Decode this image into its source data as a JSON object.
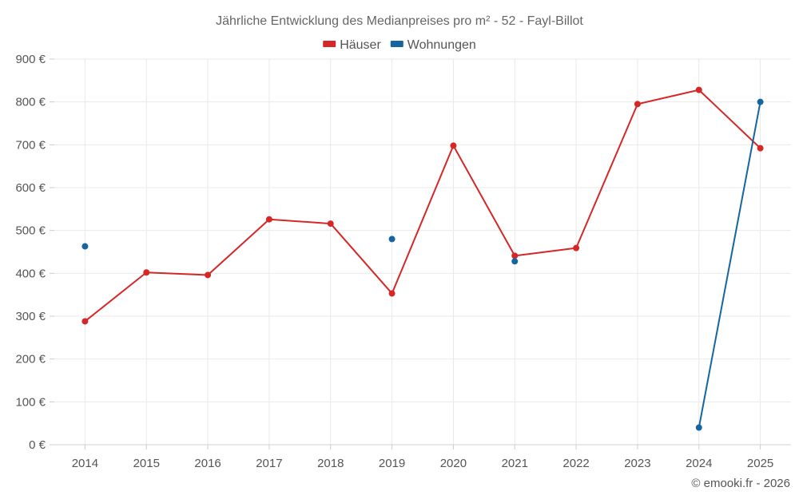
{
  "chart_data": {
    "type": "line",
    "title": "Jährliche Entwicklung des Medianpreises pro m² - 52 - Fayl-Billot",
    "categories": [
      "2014",
      "2015",
      "2016",
      "2017",
      "2018",
      "2019",
      "2020",
      "2021",
      "2022",
      "2023",
      "2024",
      "2025"
    ],
    "series": [
      {
        "name": "Häuser",
        "color": "#d62728",
        "values": [
          288,
          402,
          396,
          526,
          516,
          353,
          698,
          441,
          459,
          795,
          828,
          692
        ]
      },
      {
        "name": "Wohnungen",
        "color": "#1565a0",
        "values": [
          463,
          null,
          null,
          null,
          null,
          480,
          null,
          428,
          null,
          null,
          40,
          800
        ]
      }
    ],
    "ylim": [
      0,
      900
    ],
    "yticks": [
      0,
      100,
      200,
      300,
      400,
      500,
      600,
      700,
      800,
      900
    ],
    "ytick_labels": [
      "0 €",
      "100 €",
      "200 €",
      "300 €",
      "400 €",
      "500 €",
      "600 €",
      "700 €",
      "800 €",
      "900 €"
    ],
    "grid": true,
    "legend_position": "top-center",
    "credit": "© emooki.fr - 2026"
  }
}
